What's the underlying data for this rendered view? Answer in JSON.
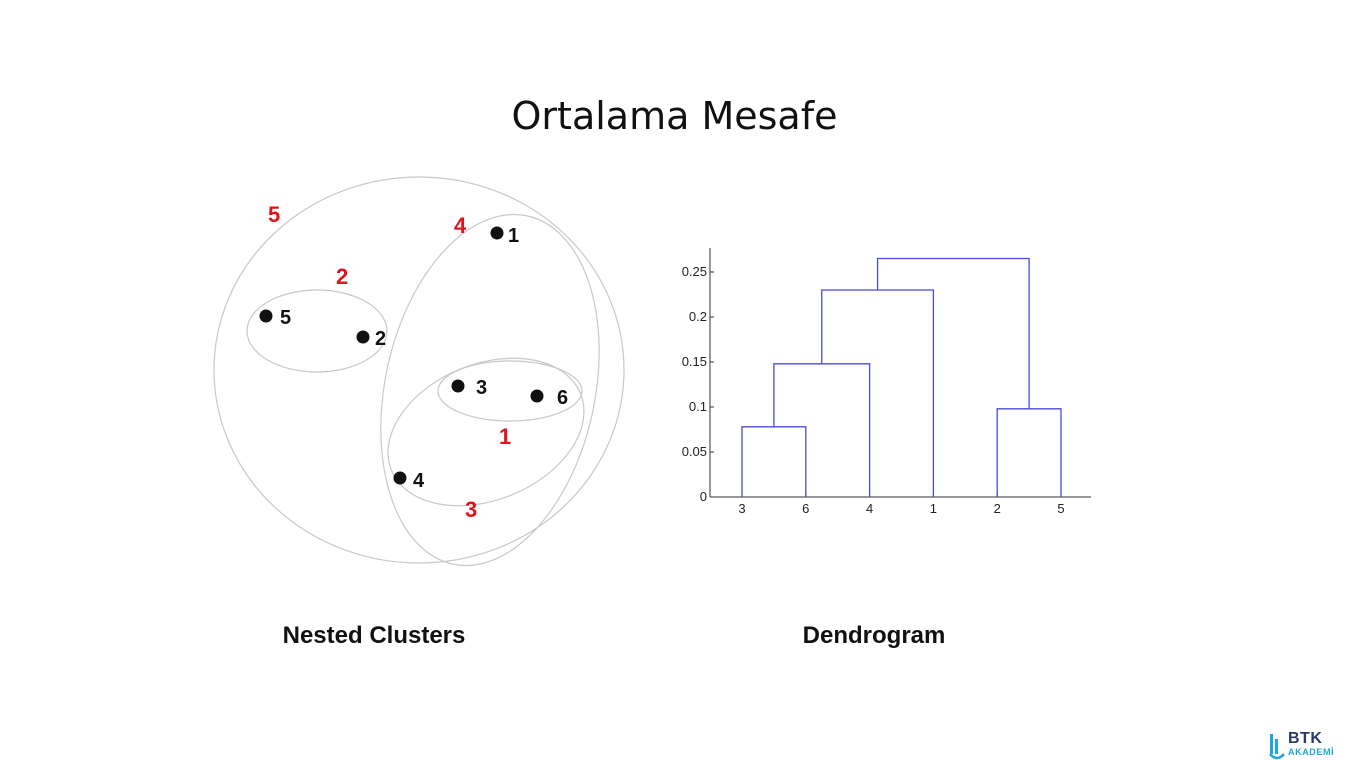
{
  "slide": {
    "title": "Ortalama Mesafe",
    "captions": {
      "nested": "Nested Clusters",
      "dendrogram": "Dendrogram"
    }
  },
  "nested_clusters": {
    "points": [
      {
        "label": "1"
      },
      {
        "label": "5"
      },
      {
        "label": "2"
      },
      {
        "label": "3"
      },
      {
        "label": "6"
      },
      {
        "label": "4"
      }
    ],
    "cluster_labels": [
      "5",
      "4",
      "2",
      "1",
      "3"
    ],
    "colors": {
      "cluster_label": "#e0141b",
      "outline": "#c8c8c8",
      "point": "#111111"
    }
  },
  "dendrogram": {
    "y_ticks": [
      "0",
      "0.05",
      "0.1",
      "0.15",
      "0.2",
      "0.25"
    ],
    "leaves": [
      "3",
      "6",
      "4",
      "1",
      "2",
      "5"
    ],
    "color": "#4a4ad8"
  },
  "chart_data": {
    "type": "dendrogram",
    "leaf_order": [
      "3",
      "6",
      "4",
      "1",
      "2",
      "5"
    ],
    "merges": [
      {
        "cluster": [
          "3",
          "6"
        ],
        "height": 0.078
      },
      {
        "cluster": [
          "2",
          "5"
        ],
        "height": 0.098
      },
      {
        "cluster": [
          "3",
          "6",
          "4"
        ],
        "height": 0.148
      },
      {
        "cluster": [
          "3",
          "6",
          "4",
          "1"
        ],
        "height": 0.23
      },
      {
        "cluster": [
          "3",
          "6",
          "4",
          "1",
          "2",
          "5"
        ],
        "height": 0.265
      }
    ],
    "ylim": [
      0,
      0.28
    ]
  },
  "logo": {
    "top": "BTK",
    "bottom": "AKADEMİ"
  }
}
